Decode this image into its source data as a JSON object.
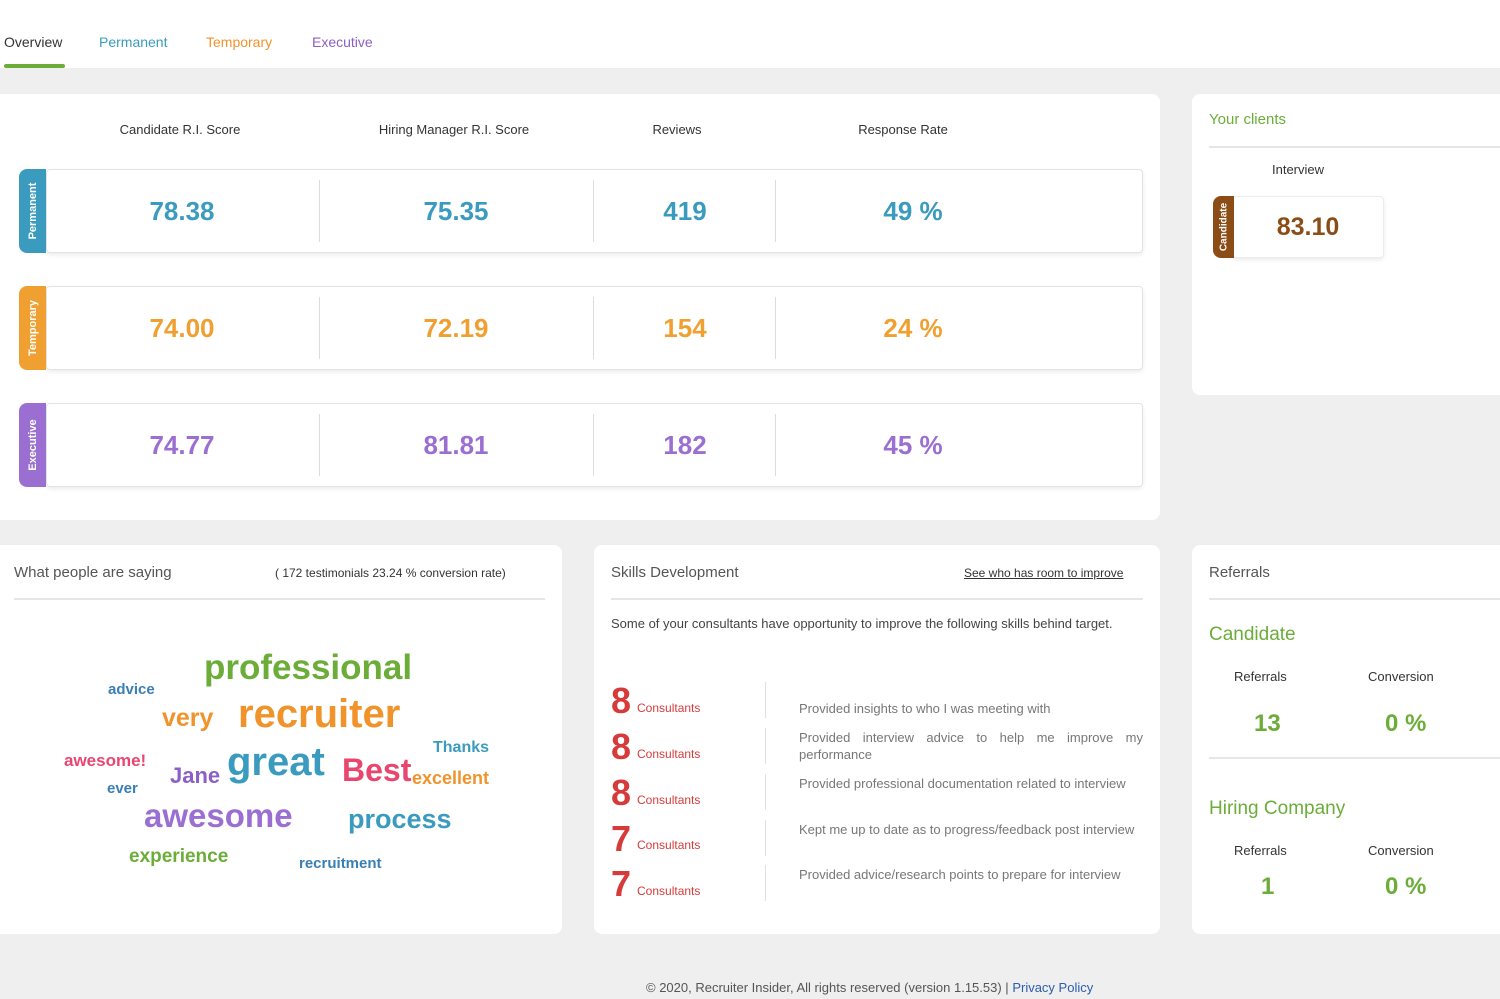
{
  "tabs": [
    {
      "label": "Overview",
      "color": "#333333"
    },
    {
      "label": "Permanent",
      "color": "#3a9bbf"
    },
    {
      "label": "Temporary",
      "color": "#f0932b"
    },
    {
      "label": "Executive",
      "color": "#8b5fc7"
    }
  ],
  "scores": {
    "headers": [
      "Candidate R.I. Score",
      "Hiring Manager R.I. Score",
      "Reviews",
      "Response Rate"
    ],
    "rows": [
      {
        "label": "Permanent",
        "color": "#3a9bbf",
        "values": [
          "78.38",
          "75.35",
          "419",
          "49 %"
        ]
      },
      {
        "label": "Temporary",
        "color": "#f0a030",
        "values": [
          "74.00",
          "72.19",
          "154",
          "24 %"
        ]
      },
      {
        "label": "Executive",
        "color": "#9b6fd1",
        "values": [
          "74.77",
          "81.81",
          "182",
          "45 %"
        ]
      }
    ]
  },
  "clients": {
    "title": "Your clients",
    "header": "Interview",
    "tab_label": "Candidate",
    "tab_color": "#8b4c15",
    "value": "83.10"
  },
  "testimonials": {
    "title": "What people are saying",
    "summary": "( 172 testimonials 23.24 % conversion rate)",
    "words": [
      {
        "text": "professional",
        "color": "#6cad3a"
      },
      {
        "text": "advice",
        "color": "#3a7fb3"
      },
      {
        "text": "very",
        "color": "#f0932b"
      },
      {
        "text": "recruiter",
        "color": "#f0932b"
      },
      {
        "text": "Thanks",
        "color": "#3a9bbf"
      },
      {
        "text": "awesome!",
        "color": "#e8466f"
      },
      {
        "text": "Jane",
        "color": "#8b5fc7"
      },
      {
        "text": "great",
        "color": "#3a9bbf"
      },
      {
        "text": "Best",
        "color": "#e8466f"
      },
      {
        "text": "excellent",
        "color": "#f0932b"
      },
      {
        "text": "ever",
        "color": "#3a7fb3"
      },
      {
        "text": "awesome",
        "color": "#9b6fd1"
      },
      {
        "text": "process",
        "color": "#3a9bbf"
      },
      {
        "text": "experience",
        "color": "#6cad3a"
      },
      {
        "text": "recruitment",
        "color": "#3a7fb3"
      }
    ]
  },
  "skills": {
    "title": "Skills Development",
    "link": "See who has room to improve",
    "intro": "Some of your consultants have opportunity to improve the following skills behind target.",
    "unit": "Consultants",
    "items": [
      {
        "count": "8",
        "text": "Provided insights to who I was meeting with"
      },
      {
        "count": "8",
        "text": "Provided interview advice to help me improve my performance"
      },
      {
        "count": "8",
        "text": "Provided professional documentation related to interview"
      },
      {
        "count": "7",
        "text": "Kept me up to date as to progress/feedback post interview"
      },
      {
        "count": "7",
        "text": "Provided advice/research points to prepare for interview"
      }
    ]
  },
  "referrals": {
    "title": "Referrals",
    "groups": [
      {
        "name": "Candidate",
        "labels": [
          "Referrals",
          "Conversion"
        ],
        "values": [
          "13",
          "0 %"
        ]
      },
      {
        "name": "Hiring Company",
        "labels": [
          "Referrals",
          "Conversion"
        ],
        "values": [
          "1",
          "0 %"
        ]
      }
    ]
  },
  "footer": {
    "text": "© 2020, Recruiter Insider, All rights reserved (version 1.15.53) |",
    "link": "Privacy Policy"
  }
}
